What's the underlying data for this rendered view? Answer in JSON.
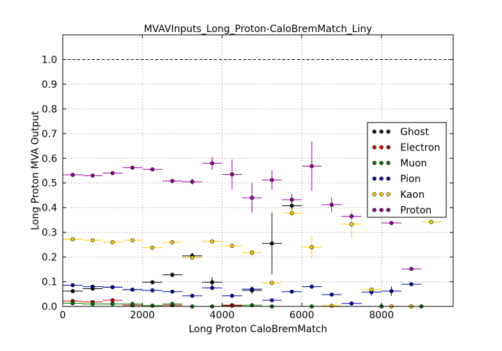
{
  "chart_data": {
    "type": "scatter",
    "title": "MVAVInputs_Long_Proton-CaloBremMatch_Liny",
    "xlabel": "Long Proton CaloBremMatch",
    "ylabel": "Long Proton MVA Output",
    "xlim": [
      0,
      9800
    ],
    "ylim": [
      0,
      1.1
    ],
    "xticks": [
      0,
      2000,
      4000,
      6000,
      8000
    ],
    "xtick_labels": [
      "0",
      "2000",
      "4000",
      "6000",
      "8000"
    ],
    "yticks": [
      0.0,
      0.1,
      0.2,
      0.3,
      0.4,
      0.5,
      0.6,
      0.7,
      0.8,
      0.9,
      1.0
    ],
    "ytick_labels": [
      "0.0",
      "0.1",
      "0.2",
      "0.3",
      "0.4",
      "0.5",
      "0.6",
      "0.7",
      "0.8",
      "0.9",
      "1.0"
    ],
    "grid": true,
    "reference_line_y": 1.0,
    "legend_position": "right",
    "series": [
      {
        "name": "Ghost",
        "color": "#000000",
        "points": [
          {
            "x": 250,
            "y": 0.062,
            "xerr": 250,
            "yerr": 0.004
          },
          {
            "x": 750,
            "y": 0.072,
            "xerr": 250,
            "yerr": 0.004
          },
          {
            "x": 1250,
            "y": 0.078,
            "xerr": 250,
            "yerr": 0.005
          },
          {
            "x": 1750,
            "y": 0.068,
            "xerr": 250,
            "yerr": 0.005
          },
          {
            "x": 2250,
            "y": 0.098,
            "xerr": 250,
            "yerr": 0.007
          },
          {
            "x": 2750,
            "y": 0.128,
            "xerr": 250,
            "yerr": 0.01
          },
          {
            "x": 3250,
            "y": 0.205,
            "xerr": 250,
            "yerr": 0.012
          },
          {
            "x": 3750,
            "y": 0.098,
            "xerr": 250,
            "yerr": 0.02
          },
          {
            "x": 4250,
            "y": 0.005,
            "xerr": 250,
            "yerr": 0.005
          },
          {
            "x": 4750,
            "y": 0.065,
            "xerr": 250,
            "yerr": 0.015
          },
          {
            "x": 5250,
            "y": 0.255,
            "xerr": 250,
            "yerr": 0.125
          },
          {
            "x": 5750,
            "y": 0.408,
            "xerr": 250,
            "yerr": 0.02
          }
        ]
      },
      {
        "name": "Electron",
        "color": "#cc0000",
        "points": [
          {
            "x": 250,
            "y": 0.022,
            "xerr": 250,
            "yerr": 0.003
          },
          {
            "x": 750,
            "y": 0.018,
            "xerr": 250,
            "yerr": 0.003
          },
          {
            "x": 1250,
            "y": 0.025,
            "xerr": 250,
            "yerr": 0.004
          },
          {
            "x": 1750,
            "y": 0.005,
            "xerr": 250,
            "yerr": 0.003
          },
          {
            "x": 2750,
            "y": 0.005,
            "xerr": 250,
            "yerr": 0.003
          },
          {
            "x": 4250,
            "y": 0.003,
            "xerr": 250,
            "yerr": 0.003
          }
        ]
      },
      {
        "name": "Muon",
        "color": "#007700",
        "points": [
          {
            "x": 250,
            "y": 0.013,
            "xerr": 250,
            "yerr": 0.003
          },
          {
            "x": 750,
            "y": 0.01,
            "xerr": 250,
            "yerr": 0.003
          },
          {
            "x": 1250,
            "y": 0.01,
            "xerr": 250,
            "yerr": 0.003
          },
          {
            "x": 1750,
            "y": 0.01,
            "xerr": 250,
            "yerr": 0.003
          },
          {
            "x": 2250,
            "y": 0.003,
            "xerr": 250,
            "yerr": 0.002
          },
          {
            "x": 2750,
            "y": 0.01,
            "xerr": 250,
            "yerr": 0.003
          },
          {
            "x": 3250,
            "y": 0.0,
            "xerr": 250,
            "yerr": 0.002
          },
          {
            "x": 3750,
            "y": 0.0,
            "xerr": 250,
            "yerr": 0.002
          },
          {
            "x": 4750,
            "y": 0.005,
            "xerr": 250,
            "yerr": 0.003
          },
          {
            "x": 5250,
            "y": 0.0,
            "xerr": 250,
            "yerr": 0.002
          },
          {
            "x": 6250,
            "y": 0.0,
            "xerr": 250,
            "yerr": 0.002
          },
          {
            "x": 8000,
            "y": 0.0,
            "xerr": 250,
            "yerr": 0.002
          },
          {
            "x": 9000,
            "y": 0.0,
            "xerr": 250,
            "yerr": 0.002
          }
        ]
      },
      {
        "name": "Pion",
        "color": "#0000aa",
        "points": [
          {
            "x": 250,
            "y": 0.086,
            "xerr": 250,
            "yerr": 0.003
          },
          {
            "x": 750,
            "y": 0.08,
            "xerr": 250,
            "yerr": 0.003
          },
          {
            "x": 1250,
            "y": 0.078,
            "xerr": 250,
            "yerr": 0.003
          },
          {
            "x": 1750,
            "y": 0.068,
            "xerr": 250,
            "yerr": 0.003
          },
          {
            "x": 2250,
            "y": 0.065,
            "xerr": 250,
            "yerr": 0.004
          },
          {
            "x": 2750,
            "y": 0.06,
            "xerr": 250,
            "yerr": 0.004
          },
          {
            "x": 3250,
            "y": 0.043,
            "xerr": 250,
            "yerr": 0.004
          },
          {
            "x": 3750,
            "y": 0.075,
            "xerr": 250,
            "yerr": 0.006
          },
          {
            "x": 4250,
            "y": 0.043,
            "xerr": 250,
            "yerr": 0.005
          },
          {
            "x": 4750,
            "y": 0.07,
            "xerr": 250,
            "yerr": 0.008
          },
          {
            "x": 5250,
            "y": 0.025,
            "xerr": 250,
            "yerr": 0.005
          },
          {
            "x": 5750,
            "y": 0.06,
            "xerr": 250,
            "yerr": 0.006
          },
          {
            "x": 6250,
            "y": 0.08,
            "xerr": 250,
            "yerr": 0.007
          },
          {
            "x": 6750,
            "y": 0.048,
            "xerr": 250,
            "yerr": 0.006
          },
          {
            "x": 7250,
            "y": 0.012,
            "xerr": 250,
            "yerr": 0.005
          },
          {
            "x": 7750,
            "y": 0.058,
            "xerr": 250,
            "yerr": 0.015
          },
          {
            "x": 8250,
            "y": 0.062,
            "xerr": 250,
            "yerr": 0.02
          },
          {
            "x": 8750,
            "y": 0.09,
            "xerr": 250,
            "yerr": 0.005
          }
        ]
      },
      {
        "name": "Kaon",
        "color": "#ffcc00",
        "points": [
          {
            "x": 250,
            "y": 0.272,
            "xerr": 250,
            "yerr": 0.004
          },
          {
            "x": 750,
            "y": 0.268,
            "xerr": 250,
            "yerr": 0.004
          },
          {
            "x": 1250,
            "y": 0.26,
            "xerr": 250,
            "yerr": 0.004
          },
          {
            "x": 1750,
            "y": 0.268,
            "xerr": 250,
            "yerr": 0.005
          },
          {
            "x": 2250,
            "y": 0.238,
            "xerr": 250,
            "yerr": 0.006
          },
          {
            "x": 2750,
            "y": 0.26,
            "xerr": 250,
            "yerr": 0.006
          },
          {
            "x": 3250,
            "y": 0.198,
            "xerr": 250,
            "yerr": 0.008
          },
          {
            "x": 3750,
            "y": 0.263,
            "xerr": 250,
            "yerr": 0.008
          },
          {
            "x": 4250,
            "y": 0.245,
            "xerr": 250,
            "yerr": 0.01
          },
          {
            "x": 4750,
            "y": 0.218,
            "xerr": 250,
            "yerr": 0.012
          },
          {
            "x": 5250,
            "y": 0.095,
            "xerr": 250,
            "yerr": 0.008
          },
          {
            "x": 5750,
            "y": 0.378,
            "xerr": 250,
            "yerr": 0.015
          },
          {
            "x": 6250,
            "y": 0.24,
            "xerr": 250,
            "yerr": 0.045
          },
          {
            "x": 6750,
            "y": 0.003,
            "xerr": 250,
            "yerr": 0.003
          },
          {
            "x": 7250,
            "y": 0.333,
            "xerr": 250,
            "yerr": 0.055
          },
          {
            "x": 7750,
            "y": 0.068,
            "xerr": 250,
            "yerr": 0.008
          },
          {
            "x": 8250,
            "y": 0.0,
            "xerr": 250,
            "yerr": 0.003
          },
          {
            "x": 8750,
            "y": 0.0,
            "xerr": 250,
            "yerr": 0.003
          },
          {
            "x": 9250,
            "y": 0.342,
            "xerr": 250,
            "yerr": 0.006
          }
        ]
      },
      {
        "name": "Proton",
        "color": "#990099",
        "points": [
          {
            "x": 250,
            "y": 0.533,
            "xerr": 250,
            "yerr": 0.004
          },
          {
            "x": 750,
            "y": 0.53,
            "xerr": 250,
            "yerr": 0.004
          },
          {
            "x": 1250,
            "y": 0.54,
            "xerr": 250,
            "yerr": 0.004
          },
          {
            "x": 1750,
            "y": 0.562,
            "xerr": 250,
            "yerr": 0.004
          },
          {
            "x": 2250,
            "y": 0.555,
            "xerr": 250,
            "yerr": 0.005
          },
          {
            "x": 2750,
            "y": 0.508,
            "xerr": 250,
            "yerr": 0.006
          },
          {
            "x": 3250,
            "y": 0.505,
            "xerr": 250,
            "yerr": 0.012
          },
          {
            "x": 3750,
            "y": 0.58,
            "xerr": 250,
            "yerr": 0.025
          },
          {
            "x": 4250,
            "y": 0.535,
            "xerr": 250,
            "yerr": 0.06
          },
          {
            "x": 4750,
            "y": 0.44,
            "xerr": 250,
            "yerr": 0.06
          },
          {
            "x": 5250,
            "y": 0.512,
            "xerr": 250,
            "yerr": 0.04
          },
          {
            "x": 5750,
            "y": 0.432,
            "xerr": 250,
            "yerr": 0.025
          },
          {
            "x": 6250,
            "y": 0.568,
            "xerr": 250,
            "yerr": 0.1
          },
          {
            "x": 6750,
            "y": 0.412,
            "xerr": 250,
            "yerr": 0.03
          },
          {
            "x": 7250,
            "y": 0.365,
            "xerr": 250,
            "yerr": 0.012
          },
          {
            "x": 8250,
            "y": 0.338,
            "xerr": 250,
            "yerr": 0.005
          },
          {
            "x": 8750,
            "y": 0.152,
            "xerr": 250,
            "yerr": 0.005
          }
        ]
      }
    ]
  }
}
